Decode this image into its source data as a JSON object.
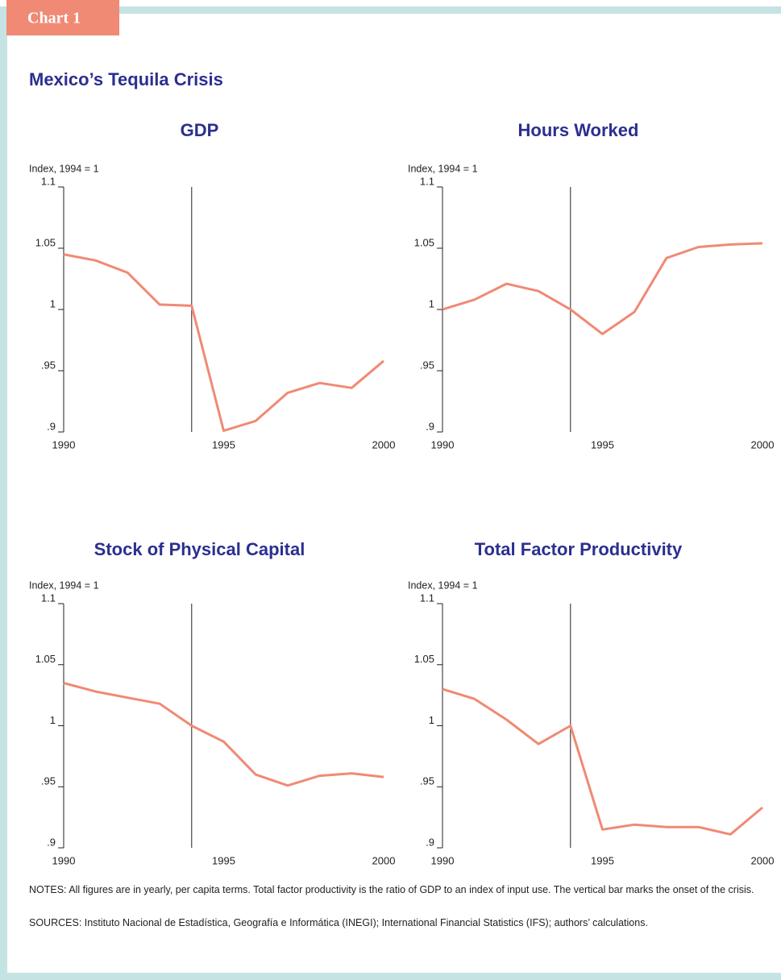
{
  "header": {
    "label": "Chart 1",
    "title": "Mexico’s Tequila Crisis"
  },
  "chart_data": [
    {
      "type": "line",
      "title": "GDP",
      "y_label": "Index, 1994 = 1",
      "x": [
        1990,
        1991,
        1992,
        1993,
        1994,
        1995,
        1996,
        1997,
        1998,
        1999,
        2000
      ],
      "values": [
        1.045,
        1.04,
        1.03,
        1.004,
        1.003,
        0.901,
        0.909,
        0.932,
        0.94,
        0.936,
        0.958
      ],
      "color": "#f08a74",
      "xlim": [
        1990,
        2000
      ],
      "ylim": [
        0.9,
        1.1
      ],
      "xticks": [
        1990,
        1995,
        2000
      ],
      "yticks": [
        {
          "value": 0.9,
          "label": ".9"
        },
        {
          "value": 0.95,
          "label": ".95"
        },
        1,
        1.05,
        1.1
      ],
      "vline": 1994
    },
    {
      "type": "line",
      "title": "Hours Worked",
      "y_label": "Index, 1994 = 1",
      "x": [
        1990,
        1991,
        1992,
        1993,
        1994,
        1995,
        1996,
        1997,
        1998,
        1999,
        2000
      ],
      "values": [
        1.0,
        1.008,
        1.021,
        1.015,
        1.0,
        0.98,
        0.998,
        1.042,
        1.051,
        1.053,
        1.054
      ],
      "color": "#f08a74",
      "xlim": [
        1990,
        2000
      ],
      "ylim": [
        0.9,
        1.1
      ],
      "xticks": [
        1990,
        1995,
        2000
      ],
      "yticks": [
        {
          "value": 0.9,
          "label": ".9"
        },
        {
          "value": 0.95,
          "label": ".95"
        },
        1,
        1.05,
        1.1
      ],
      "vline": 1994
    },
    {
      "type": "line",
      "title": "Stock of Physical Capital",
      "y_label": "Index, 1994 = 1",
      "x": [
        1990,
        1991,
        1992,
        1993,
        1994,
        1995,
        1996,
        1997,
        1998,
        1999,
        2000
      ],
      "values": [
        1.035,
        1.028,
        1.023,
        1.018,
        1.0,
        0.987,
        0.96,
        0.951,
        0.959,
        0.961,
        0.958
      ],
      "color": "#f08a74",
      "xlim": [
        1990,
        2000
      ],
      "ylim": [
        0.9,
        1.1
      ],
      "xticks": [
        1990,
        1995,
        2000
      ],
      "yticks": [
        {
          "value": 0.9,
          "label": ".9"
        },
        {
          "value": 0.95,
          "label": ".95"
        },
        1,
        1.05,
        1.1
      ],
      "vline": 1994
    },
    {
      "type": "line",
      "title": "Total Factor Productivity",
      "y_label": "Index, 1994 = 1",
      "x": [
        1990,
        1991,
        1992,
        1993,
        1994,
        1995,
        1996,
        1997,
        1998,
        1999,
        2000
      ],
      "values": [
        1.03,
        1.022,
        1.005,
        0.985,
        1.0,
        0.915,
        0.919,
        0.917,
        0.917,
        0.911,
        0.933
      ],
      "color": "#f08a74",
      "xlim": [
        1990,
        2000
      ],
      "ylim": [
        0.9,
        1.1
      ],
      "xticks": [
        1990,
        1995,
        2000
      ],
      "yticks": [
        {
          "value": 0.9,
          "label": ".9"
        },
        {
          "value": 0.95,
          "label": ".95"
        },
        1,
        1.05,
        1.1
      ],
      "vline": 1994
    }
  ],
  "notes": "NOTES: All figures are in yearly, per capita terms. Total factor productivity is the ratio of GDP to an index of input use. The vertical bar marks the onset of the crisis.",
  "sources": "SOURCES: Instituto Nacional de Estadística, Geografía e Informática (INEGI); International Financial Statistics (IFS); authors’ calculations."
}
